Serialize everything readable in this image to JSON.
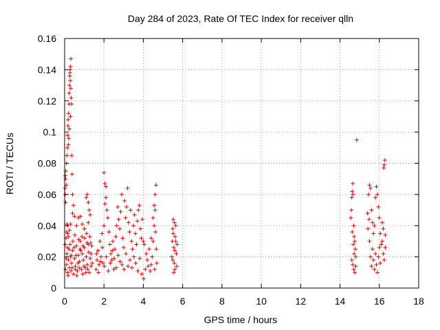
{
  "chart_data": {
    "type": "scatter",
    "title": "Day 284 of 2023, Rate Of TEC Index for receiver qlln",
    "xlabel": "GPS time / hours",
    "ylabel": "ROTI / TECUs",
    "xlim": [
      0,
      18
    ],
    "ylim": [
      0,
      0.16
    ],
    "xticks": [
      0,
      2,
      4,
      6,
      8,
      10,
      12,
      14,
      16,
      18
    ],
    "xtick_labels": [
      "0",
      "2",
      "4",
      "6",
      "8",
      "10",
      "12",
      "14",
      "16",
      "18"
    ],
    "yticks": [
      0,
      0.02,
      0.04,
      0.06,
      0.08,
      0.1,
      0.12,
      0.14,
      0.16
    ],
    "ytick_labels": [
      "0",
      "0.02",
      "0.04",
      "0.06",
      "0.08",
      "0.1",
      "0.12",
      "0.14",
      "0.16"
    ],
    "grid": true,
    "marker": "+",
    "color": "#e00000",
    "points": [
      [
        0.02,
        0.064
      ],
      [
        0.04,
        0.072
      ],
      [
        0.05,
        0.07
      ],
      [
        0.06,
        0.075
      ],
      [
        0.08,
        0.066
      ],
      [
        0.1,
        0.08
      ],
      [
        0.12,
        0.085
      ],
      [
        0.14,
        0.09
      ],
      [
        0.15,
        0.098
      ],
      [
        0.17,
        0.104
      ],
      [
        0.18,
        0.108
      ],
      [
        0.2,
        0.112
      ],
      [
        0.22,
        0.118
      ],
      [
        0.23,
        0.125
      ],
      [
        0.25,
        0.13
      ],
      [
        0.26,
        0.136
      ],
      [
        0.28,
        0.14
      ],
      [
        0.3,
        0.142
      ],
      [
        0.32,
        0.147
      ],
      [
        0.27,
        0.138
      ],
      [
        0.29,
        0.133
      ],
      [
        0.31,
        0.128
      ],
      [
        0.33,
        0.122
      ],
      [
        0.35,
        0.118
      ],
      [
        0.3,
        0.11
      ],
      [
        0.24,
        0.102
      ],
      [
        0.21,
        0.096
      ],
      [
        0.19,
        0.092
      ],
      [
        0.36,
        0.085
      ],
      [
        0.38,
        0.073
      ],
      [
        0.4,
        0.06
      ],
      [
        0.03,
        0.06
      ],
      [
        0.05,
        0.055
      ],
      [
        0.03,
        0.028
      ],
      [
        0.07,
        0.032
      ],
      [
        0.1,
        0.036
      ],
      [
        0.12,
        0.041
      ],
      [
        0.15,
        0.04
      ],
      [
        0.16,
        0.035
      ],
      [
        0.2,
        0.033
      ],
      [
        0.25,
        0.037
      ],
      [
        0.3,
        0.041
      ],
      [
        0.4,
        0.048
      ],
      [
        0.45,
        0.053
      ],
      [
        0.5,
        0.046
      ],
      [
        0.6,
        0.04
      ],
      [
        0.7,
        0.045
      ],
      [
        0.8,
        0.046
      ],
      [
        0.9,
        0.041
      ],
      [
        1.0,
        0.038
      ],
      [
        1.1,
        0.058
      ],
      [
        1.15,
        0.06
      ],
      [
        1.2,
        0.055
      ],
      [
        1.25,
        0.05
      ],
      [
        1.3,
        0.047
      ],
      [
        1.2,
        0.042
      ],
      [
        0.05,
        0.012
      ],
      [
        0.1,
        0.015
      ],
      [
        0.15,
        0.01
      ],
      [
        0.2,
        0.018
      ],
      [
        0.25,
        0.013
      ],
      [
        0.3,
        0.02
      ],
      [
        0.35,
        0.016
      ],
      [
        0.4,
        0.024
      ],
      [
        0.45,
        0.009
      ],
      [
        0.5,
        0.019
      ],
      [
        0.55,
        0.014
      ],
      [
        0.6,
        0.027
      ],
      [
        0.65,
        0.011
      ],
      [
        0.7,
        0.021
      ],
      [
        0.75,
        0.017
      ],
      [
        0.8,
        0.03
      ],
      [
        0.85,
        0.012
      ],
      [
        0.9,
        0.022
      ],
      [
        0.95,
        0.018
      ],
      [
        1.0,
        0.026
      ],
      [
        1.05,
        0.013
      ],
      [
        1.1,
        0.02
      ],
      [
        1.15,
        0.015
      ],
      [
        1.2,
        0.028
      ],
      [
        1.25,
        0.01
      ],
      [
        1.3,
        0.019
      ],
      [
        1.35,
        0.022
      ],
      [
        1.4,
        0.016
      ],
      [
        0.12,
        0.022
      ],
      [
        0.22,
        0.025
      ],
      [
        0.32,
        0.011
      ],
      [
        0.42,
        0.03
      ],
      [
        0.52,
        0.034
      ],
      [
        0.62,
        0.008
      ],
      [
        0.72,
        0.031
      ],
      [
        0.82,
        0.024
      ],
      [
        0.92,
        0.009
      ],
      [
        1.02,
        0.032
      ],
      [
        1.12,
        0.035
      ],
      [
        1.22,
        0.023
      ],
      [
        1.32,
        0.029
      ],
      [
        0.18,
        0.008
      ],
      [
        0.38,
        0.013
      ],
      [
        0.58,
        0.021
      ],
      [
        0.78,
        0.025
      ],
      [
        0.98,
        0.014
      ],
      [
        1.18,
        0.012
      ],
      [
        1.38,
        0.027
      ],
      [
        0.08,
        0.019
      ],
      [
        0.28,
        0.028
      ],
      [
        0.48,
        0.026
      ],
      [
        0.68,
        0.016
      ],
      [
        0.88,
        0.033
      ],
      [
        1.08,
        0.01
      ],
      [
        1.28,
        0.033
      ],
      [
        0.14,
        0.026
      ],
      [
        0.34,
        0.021
      ],
      [
        0.54,
        0.012
      ],
      [
        0.74,
        0.013
      ],
      [
        0.94,
        0.027
      ],
      [
        1.14,
        0.029
      ],
      [
        1.34,
        0.014
      ],
      [
        1.6,
        0.012
      ],
      [
        1.65,
        0.018
      ],
      [
        1.7,
        0.024
      ],
      [
        1.75,
        0.015
      ],
      [
        1.8,
        0.03
      ],
      [
        1.85,
        0.02
      ],
      [
        1.9,
        0.035
      ],
      [
        1.95,
        0.016
      ],
      [
        2.0,
        0.04
      ],
      [
        2.05,
        0.054
      ],
      [
        2.1,
        0.065
      ],
      [
        2.05,
        0.067
      ],
      [
        2.0,
        0.074
      ],
      [
        2.1,
        0.058
      ],
      [
        2.15,
        0.05
      ],
      [
        2.2,
        0.045
      ],
      [
        2.25,
        0.036
      ],
      [
        2.3,
        0.028
      ],
      [
        2.35,
        0.022
      ],
      [
        2.4,
        0.018
      ],
      [
        2.45,
        0.03
      ],
      [
        2.5,
        0.012
      ],
      [
        2.55,
        0.025
      ],
      [
        2.6,
        0.033
      ],
      [
        2.65,
        0.04
      ],
      [
        2.7,
        0.052
      ],
      [
        2.75,
        0.044
      ],
      [
        2.8,
        0.038
      ],
      [
        2.85,
        0.049
      ],
      [
        2.9,
        0.06
      ],
      [
        2.95,
        0.032
      ],
      [
        3.0,
        0.026
      ],
      [
        3.05,
        0.056
      ],
      [
        3.1,
        0.045
      ],
      [
        3.15,
        0.052
      ],
      [
        3.2,
        0.064
      ],
      [
        3.25,
        0.042
      ],
      [
        3.3,
        0.036
      ],
      [
        3.35,
        0.05
      ],
      [
        3.4,
        0.03
      ],
      [
        3.45,
        0.025
      ],
      [
        3.5,
        0.04
      ],
      [
        3.55,
        0.047
      ],
      [
        3.6,
        0.035
      ],
      [
        3.65,
        0.028
      ],
      [
        3.7,
        0.043
      ],
      [
        3.75,
        0.05
      ],
      [
        3.8,
        0.053
      ],
      [
        3.85,
        0.038
      ],
      [
        3.9,
        0.032
      ],
      [
        3.95,
        0.044
      ],
      [
        4.0,
        0.03
      ],
      [
        1.62,
        0.022
      ],
      [
        1.72,
        0.01
      ],
      [
        1.82,
        0.017
      ],
      [
        1.92,
        0.026
      ],
      [
        2.02,
        0.014
      ],
      [
        2.12,
        0.02
      ],
      [
        2.22,
        0.011
      ],
      [
        2.32,
        0.016
      ],
      [
        2.42,
        0.024
      ],
      [
        2.52,
        0.019
      ],
      [
        2.62,
        0.013
      ],
      [
        2.72,
        0.021
      ],
      [
        2.82,
        0.017
      ],
      [
        2.92,
        0.015
      ],
      [
        3.02,
        0.012
      ],
      [
        3.12,
        0.022
      ],
      [
        3.22,
        0.014
      ],
      [
        3.32,
        0.018
      ],
      [
        3.42,
        0.013
      ],
      [
        3.52,
        0.02
      ],
      [
        3.62,
        0.016
      ],
      [
        3.72,
        0.011
      ],
      [
        3.82,
        0.019
      ],
      [
        3.92,
        0.009
      ],
      [
        4.02,
        0.006
      ],
      [
        4.1,
        0.012
      ],
      [
        4.2,
        0.018
      ],
      [
        4.3,
        0.025
      ],
      [
        4.4,
        0.032
      ],
      [
        4.5,
        0.045
      ],
      [
        4.55,
        0.053
      ],
      [
        4.6,
        0.06
      ],
      [
        4.65,
        0.066
      ],
      [
        4.6,
        0.05
      ],
      [
        4.55,
        0.04
      ],
      [
        4.5,
        0.03
      ],
      [
        4.45,
        0.02
      ],
      [
        4.4,
        0.015
      ],
      [
        4.35,
        0.011
      ],
      [
        4.25,
        0.014
      ],
      [
        4.15,
        0.022
      ],
      [
        4.05,
        0.028
      ],
      [
        4.62,
        0.036
      ],
      [
        4.66,
        0.025
      ],
      [
        4.68,
        0.016
      ],
      [
        4.58,
        0.012
      ],
      [
        5.45,
        0.02
      ],
      [
        5.48,
        0.03
      ],
      [
        5.5,
        0.038
      ],
      [
        5.52,
        0.044
      ],
      [
        5.55,
        0.026
      ],
      [
        5.58,
        0.016
      ],
      [
        5.6,
        0.012
      ],
      [
        5.62,
        0.033
      ],
      [
        5.65,
        0.04
      ],
      [
        5.68,
        0.022
      ],
      [
        5.7,
        0.014
      ],
      [
        5.72,
        0.028
      ],
      [
        5.5,
        0.018
      ],
      [
        5.55,
        0.01
      ],
      [
        5.6,
        0.024
      ],
      [
        5.65,
        0.03
      ],
      [
        5.52,
        0.035
      ],
      [
        5.58,
        0.042
      ],
      [
        14.55,
        0.045
      ],
      [
        14.58,
        0.05
      ],
      [
        14.6,
        0.058
      ],
      [
        14.62,
        0.062
      ],
      [
        14.65,
        0.067
      ],
      [
        14.67,
        0.06
      ],
      [
        14.7,
        0.04
      ],
      [
        14.72,
        0.033
      ],
      [
        14.75,
        0.03
      ],
      [
        14.78,
        0.025
      ],
      [
        14.8,
        0.02
      ],
      [
        14.6,
        0.018
      ],
      [
        14.65,
        0.015
      ],
      [
        14.7,
        0.012
      ],
      [
        14.75,
        0.01
      ],
      [
        14.8,
        0.014
      ],
      [
        14.85,
        0.095
      ],
      [
        14.68,
        0.028
      ],
      [
        14.72,
        0.022
      ],
      [
        14.62,
        0.036
      ],
      [
        15.4,
        0.048
      ],
      [
        15.45,
        0.06
      ],
      [
        15.5,
        0.066
      ],
      [
        15.55,
        0.064
      ],
      [
        15.6,
        0.05
      ],
      [
        15.65,
        0.042
      ],
      [
        15.7,
        0.035
      ],
      [
        15.75,
        0.04
      ],
      [
        15.8,
        0.058
      ],
      [
        15.85,
        0.065
      ],
      [
        15.9,
        0.06
      ],
      [
        15.95,
        0.052
      ],
      [
        16.0,
        0.045
      ],
      [
        15.5,
        0.03
      ],
      [
        15.55,
        0.02
      ],
      [
        15.6,
        0.014
      ],
      [
        15.65,
        0.025
      ],
      [
        15.7,
        0.018
      ],
      [
        15.75,
        0.012
      ],
      [
        15.8,
        0.022
      ],
      [
        15.85,
        0.015
      ],
      [
        15.9,
        0.01
      ],
      [
        15.95,
        0.02
      ],
      [
        16.0,
        0.026
      ],
      [
        16.05,
        0.035
      ],
      [
        16.1,
        0.028
      ],
      [
        16.15,
        0.03
      ],
      [
        16.2,
        0.022
      ],
      [
        16.25,
        0.018
      ],
      [
        16.3,
        0.026
      ],
      [
        16.22,
        0.077
      ],
      [
        16.25,
        0.079
      ],
      [
        16.28,
        0.082
      ],
      [
        16.15,
        0.042
      ],
      [
        16.2,
        0.038
      ],
      [
        16.3,
        0.034
      ],
      [
        16.05,
        0.016
      ],
      [
        15.42,
        0.038
      ],
      [
        15.48,
        0.044
      ]
    ]
  }
}
